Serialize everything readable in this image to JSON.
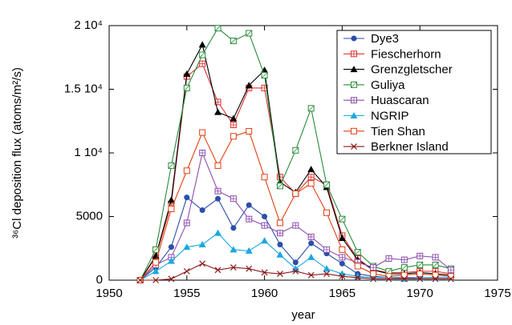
{
  "chart_data": {
    "type": "line",
    "x_label": "year",
    "y_label": "³⁶Cl deposition flux (atoms/m²/s)",
    "x": [
      1952,
      1953,
      1954,
      1955,
      1956,
      1957,
      1958,
      1959,
      1960,
      1961,
      1962,
      1963,
      1964,
      1965,
      1966,
      1967,
      1968,
      1969,
      1970,
      1971,
      1972
    ],
    "xlim": [
      1950,
      1975
    ],
    "xticks": [
      1950,
      1955,
      1960,
      1965,
      1970,
      1975
    ],
    "ylim": [
      0,
      20000
    ],
    "yticks": [
      0,
      5000,
      {
        "value": 10000,
        "label": "1 10⁴"
      },
      {
        "value": 15000,
        "label": "1.5 10⁴"
      },
      {
        "value": 20000,
        "label": "2 10⁴"
      }
    ],
    "legend": "top-right",
    "series": [
      {
        "name": "Dye3",
        "color": "#2b4ea8",
        "marker": "circle",
        "values": [
          0,
          1000,
          2600,
          6500,
          5500,
          6400,
          4100,
          5900,
          5000,
          2800,
          1400,
          2900,
          2100,
          1300,
          500,
          300,
          200,
          200,
          200,
          200,
          200
        ]
      },
      {
        "name": "Fiescherhorn",
        "color": "#e03030",
        "marker": "square-plus",
        "values": [
          0,
          1800,
          6000,
          16000,
          17000,
          14000,
          12200,
          15100,
          15100,
          8100,
          6800,
          8100,
          7500,
          3500,
          1700,
          800,
          600,
          600,
          700,
          700,
          500
        ]
      },
      {
        "name": "Grenzgletscher",
        "color": "#000000",
        "marker": "triangle",
        "values": [
          0,
          1900,
          6300,
          16200,
          18500,
          13200,
          12700,
          15300,
          16500,
          7700,
          6900,
          8700,
          7300,
          3300,
          1600,
          800,
          500,
          500,
          600,
          500,
          400
        ]
      },
      {
        "name": "Guliya",
        "color": "#2a8a3a",
        "marker": "square-slash",
        "values": [
          0,
          2400,
          9000,
          15100,
          17700,
          19800,
          18800,
          19400,
          16100,
          7400,
          10200,
          13500,
          7500,
          4800,
          2200,
          1100,
          700,
          1000,
          1200,
          1200,
          900
        ]
      },
      {
        "name": "Huascaran",
        "color": "#8e4db0",
        "marker": "square-grid",
        "values": [
          0,
          1200,
          1800,
          4500,
          10000,
          7000,
          6400,
          4800,
          4300,
          3700,
          4300,
          3400,
          2400,
          1800,
          1400,
          1000,
          1700,
          1600,
          1900,
          1800,
          800
        ]
      },
      {
        "name": "NGRIP",
        "color": "#1aa8e0",
        "marker": "triangle",
        "values": [
          0,
          700,
          1500,
          2600,
          2800,
          3700,
          2400,
          2300,
          3100,
          2000,
          900,
          1800,
          900,
          500,
          300,
          200,
          200,
          100,
          200,
          200,
          200
        ]
      },
      {
        "name": "Tien Shan",
        "color": "#e04010",
        "marker": "square",
        "values": [
          0,
          1400,
          5600,
          8600,
          11600,
          9000,
          11300,
          11700,
          8100,
          4500,
          6800,
          7600,
          5300,
          2400,
          1100,
          500,
          300,
          400,
          500,
          400,
          300
        ]
      },
      {
        "name": "Berkner Island",
        "color": "#8b1a1a",
        "marker": "x",
        "values": [
          0,
          0,
          100,
          700,
          1300,
          800,
          1000,
          900,
          600,
          500,
          700,
          400,
          500,
          300,
          200,
          100,
          100,
          100,
          100,
          100,
          100
        ]
      }
    ]
  }
}
